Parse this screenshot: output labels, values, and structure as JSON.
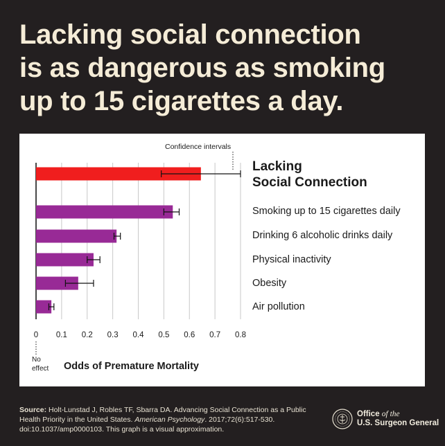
{
  "headline": {
    "line1": "Lacking social connection",
    "line2": "is as dangerous as smoking",
    "line3": "up to 15 cigarettes a day."
  },
  "chart_data": {
    "type": "bar",
    "orientation": "horizontal",
    "categories": [
      "Lacking Social Connection",
      "Smoking up to 15 cigarettes daily",
      "Drinking 6 alcoholic drinks daily",
      "Physical inactivity",
      "Obesity",
      "Air pollution"
    ],
    "values": [
      0.645,
      0.535,
      0.315,
      0.225,
      0.165,
      0.06
    ],
    "ci_low": [
      0.49,
      0.5,
      0.305,
      0.2,
      0.115,
      0.05
    ],
    "ci_high": [
      0.8,
      0.56,
      0.33,
      0.25,
      0.225,
      0.07
    ],
    "colors": [
      "#f01e1e",
      "#982a96",
      "#982a96",
      "#982a96",
      "#982a96",
      "#982a96"
    ],
    "xlabel": "Odds of Premature Mortality",
    "xlim": [
      0,
      0.8
    ],
    "xticks": [
      "0",
      "0.1",
      "0.2",
      "0.3",
      "0.4",
      "0.5",
      "0.6",
      "0.7",
      "0.8"
    ],
    "grid": true,
    "annotations": {
      "confidence": "Confidence intervals",
      "no_effect_1": "No",
      "no_effect_2": "effect"
    }
  },
  "highlight_label": {
    "line1": "Lacking",
    "line2": "Social Connection"
  },
  "footer": {
    "source_label": "Source:",
    "source_text_1": " Holt-Lunstad J, Robles TF, Sbarra DA. Advancing Social Connection as a Public Health Priority in the United States. ",
    "journal": "American Psychology",
    "source_text_2": ". 2017;72(6):517-530. doi:10.1037/amp0000103. This graph is a visual approximation."
  },
  "office": {
    "word1": "Office",
    "word2": "of the",
    "line2": "U.S. Surgeon General"
  }
}
